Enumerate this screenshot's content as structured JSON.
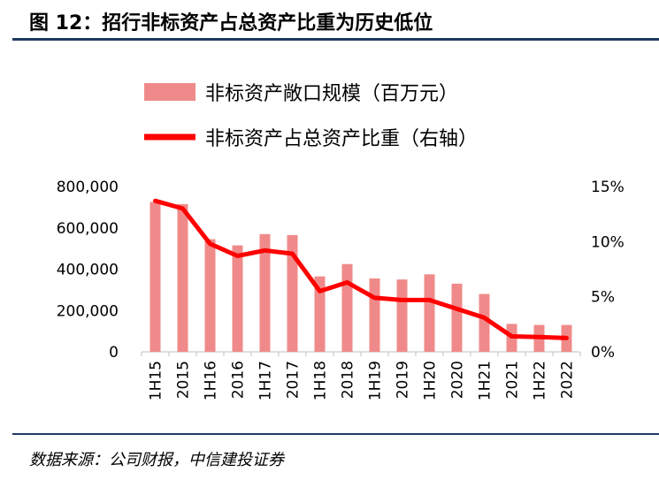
{
  "header": {
    "title": "图 12：招行非标资产占总资产比重为历史低位"
  },
  "footer": {
    "source": "数据来源：公司财报，中信建投证券"
  },
  "colors": {
    "bar": "#f08a8a",
    "line": "#ff0000",
    "rule": "#1f3a5f"
  },
  "chart_data": {
    "type": "bar+line",
    "title": "",
    "categories": [
      "1H15",
      "2015",
      "1H16",
      "2016",
      "1H17",
      "2017",
      "1H18",
      "2018",
      "1H19",
      "2019",
      "1H20",
      "2020",
      "1H21",
      "2021",
      "1H22",
      "2022"
    ],
    "series": [
      {
        "name": "非标资产敞口规模（百万元）",
        "type": "bar",
        "axis": "left",
        "values": [
          725000,
          715000,
          545000,
          515000,
          570000,
          565000,
          365000,
          425000,
          355000,
          350000,
          375000,
          330000,
          280000,
          135000,
          130000,
          130000
        ]
      },
      {
        "name": "非标资产占总资产比重（右轴）",
        "type": "line",
        "axis": "right",
        "values": [
          13.7,
          13.0,
          9.8,
          8.7,
          9.2,
          8.9,
          5.5,
          6.3,
          4.9,
          4.7,
          4.7,
          3.9,
          3.1,
          1.4,
          1.35,
          1.25
        ]
      }
    ],
    "left_axis": {
      "ylim": [
        0,
        800000
      ],
      "ticks": [
        0,
        200000,
        400000,
        600000,
        800000
      ],
      "tick_labels": [
        "0",
        "200,000",
        "400,000",
        "600,000",
        "800,000"
      ]
    },
    "right_axis": {
      "ylim": [
        0,
        15
      ],
      "ticks": [
        0,
        5,
        10,
        15
      ],
      "tick_labels": [
        "0%",
        "5%",
        "10%",
        "15%"
      ]
    },
    "legend": [
      {
        "label": "非标资产敞口规模（百万元）",
        "kind": "bar"
      },
      {
        "label": "非标资产占总资产比重（右轴）",
        "kind": "line"
      }
    ]
  }
}
